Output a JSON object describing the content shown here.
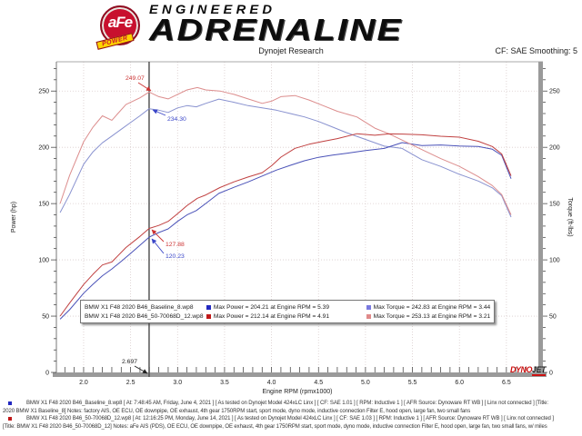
{
  "header": {
    "logo_circle": "aFe",
    "logo_ribbon": "POWER",
    "logo_line1": "ENGINEERED",
    "logo_line2": "ADRENALINE",
    "subtitle": "Dynojet Research",
    "cf_label": "CF: SAE  Smoothing: 5"
  },
  "chart_data": {
    "type": "line",
    "xlabel": "Engine RPM (rpmx1000)",
    "ylabel_left": "Power (hp)",
    "ylabel_right": "Torque (ft-lbs)",
    "xlim": [
      1.71,
      6.84
    ],
    "ylim": [
      0,
      276
    ],
    "x_ticks": [
      2.0,
      2.5,
      3.0,
      3.5,
      4.0,
      4.5,
      5.0,
      5.5,
      6.0,
      6.5
    ],
    "x_minor_step": 0.1,
    "y_ticks": [
      0,
      50,
      100,
      150,
      200,
      250
    ],
    "y_minor_step": 10,
    "grid": "dotted",
    "cursor_rpm": 2.697,
    "series": [
      {
        "name": "baseline-torque",
        "color": "#8891cf",
        "x": [
          1.75,
          1.85,
          2.0,
          2.1,
          2.2,
          2.3,
          2.4,
          2.5,
          2.6,
          2.697,
          2.8,
          2.9,
          3.0,
          3.1,
          3.2,
          3.3,
          3.44,
          3.6,
          3.75,
          3.9,
          4.05,
          4.2,
          4.35,
          4.5,
          4.65,
          4.8,
          5.0,
          5.2,
          5.39,
          5.6,
          5.8,
          6.0,
          6.2,
          6.35,
          6.45,
          6.55
        ],
        "y": [
          142,
          158,
          185,
          196,
          204,
          210,
          216,
          222,
          228,
          234.3,
          233,
          231,
          235,
          237,
          236,
          239,
          242.8,
          240,
          237,
          235,
          233,
          230,
          227,
          223,
          218,
          213,
          207,
          201,
          199,
          189,
          183,
          176,
          170,
          164,
          157,
          138
        ]
      },
      {
        "name": "baseline-power",
        "color": "#4a52b8",
        "x": [
          1.75,
          1.85,
          2.0,
          2.1,
          2.2,
          2.3,
          2.4,
          2.5,
          2.6,
          2.697,
          2.8,
          2.9,
          3.0,
          3.1,
          3.2,
          3.3,
          3.44,
          3.6,
          3.75,
          3.9,
          4.05,
          4.2,
          4.35,
          4.5,
          4.65,
          4.8,
          5.0,
          5.2,
          5.39,
          5.6,
          5.8,
          6.0,
          6.2,
          6.35,
          6.45,
          6.55
        ],
        "y": [
          47.3,
          55.7,
          70.4,
          78.4,
          85.9,
          91.9,
          98.7,
          105.7,
          113,
          120.2,
          124.3,
          127.5,
          134.2,
          139.9,
          143.8,
          150.1,
          159.1,
          164.5,
          169.2,
          174.5,
          179.7,
          184,
          188,
          191.1,
          193,
          194.7,
          197.1,
          199,
          204.2,
          201.5,
          202.1,
          201.1,
          200.7,
          198.3,
          192.9,
          172.1
        ]
      },
      {
        "name": "afe-torque",
        "color": "#dc8d8d",
        "x": [
          1.75,
          1.85,
          2.0,
          2.1,
          2.2,
          2.3,
          2.45,
          2.6,
          2.697,
          2.8,
          2.9,
          3.0,
          3.1,
          3.21,
          3.3,
          3.45,
          3.6,
          3.75,
          3.9,
          4.0,
          4.1,
          4.25,
          4.4,
          4.55,
          4.7,
          4.91,
          5.1,
          5.25,
          5.4,
          5.6,
          5.8,
          6.0,
          6.2,
          6.35,
          6.45,
          6.55
        ],
        "y": [
          150,
          175,
          205,
          218,
          228,
          224,
          238,
          244,
          249.1,
          245,
          243,
          247,
          251,
          253.1,
          251,
          250,
          247,
          243,
          239,
          241,
          245,
          246,
          242,
          237,
          232,
          226.9,
          217,
          212,
          206,
          198,
          190,
          183,
          174,
          166,
          158,
          140
        ]
      },
      {
        "name": "afe-power",
        "color": "#c04040",
        "x": [
          1.75,
          1.85,
          2.0,
          2.1,
          2.2,
          2.3,
          2.45,
          2.6,
          2.697,
          2.8,
          2.9,
          3.0,
          3.1,
          3.21,
          3.3,
          3.45,
          3.6,
          3.75,
          3.9,
          4.0,
          4.1,
          4.25,
          4.4,
          4.55,
          4.7,
          4.91,
          5.1,
          5.25,
          5.4,
          5.6,
          5.8,
          6.0,
          6.2,
          6.35,
          6.45,
          6.55
        ],
        "y": [
          50,
          61.6,
          78.1,
          87.2,
          95.5,
          98.1,
          111,
          120.8,
          127.9,
          130.6,
          134.2,
          141.1,
          148.2,
          154.7,
          157.7,
          164.2,
          169.3,
          173.6,
          177.5,
          183.6,
          191.3,
          199.1,
          202.7,
          205.3,
          207.7,
          212.1,
          210.7,
          211.9,
          211.8,
          211.1,
          209.8,
          209,
          205.4,
          200.7,
          194.1,
          174.6
        ]
      }
    ],
    "callouts": [
      {
        "text": "249.07",
        "color": "#cc3333",
        "label": [
          138,
          88
        ],
        "from": [
          152,
          91
        ],
        "to": [
          166,
          100
        ]
      },
      {
        "text": "234.30",
        "color": "#3a46c8",
        "label": [
          184,
          133
        ],
        "from": [
          182,
          127
        ],
        "to": [
          168,
          121
        ]
      },
      {
        "text": "127.88",
        "color": "#cc3333",
        "label": [
          182,
          271
        ],
        "from": [
          180,
          266
        ],
        "to": [
          167,
          253
        ]
      },
      {
        "text": "120.23",
        "color": "#3a46c8",
        "label": [
          182,
          284
        ],
        "from": [
          180,
          279
        ],
        "to": [
          167,
          263
        ]
      },
      {
        "text": "2.697",
        "color": "#222222",
        "label": [
          134,
          400
        ],
        "from": [
          148,
          403
        ],
        "to": [
          162,
          411
        ]
      }
    ]
  },
  "legend": {
    "rows": [
      {
        "file": "BMW X1 F48 2020 B46_Baseline_8.wp8",
        "power_color": "#2228c0",
        "power_text": "Max Power = 204.21 at Engine RPM = 5.39",
        "torque_color": "#7a7ae0",
        "torque_text": "Max Torque = 242.83 at Engine RPM = 3.44"
      },
      {
        "file": "BMW X1 F48 2020 B46_50-70068D_12.wp8",
        "power_color": "#c01818",
        "power_text": "Max Power = 212.14 at Engine RPM = 4.91",
        "torque_color": "#e08a8a",
        "torque_text": "Max Torque = 253.13 at Engine RPM = 3.21"
      }
    ]
  },
  "watermark": {
    "dyno": "DYNO",
    "jet": "JET"
  },
  "footer": {
    "lines": [
      {
        "bullet": "#2228c0",
        "text": "BMW X1 F48 2020 B46_Baseline_8.wp8 [ At: 7:48:45 AM, Friday, June 4, 2021 ]  [ As tested on Dynojet Model 424xLC Linx ]  [ CF: SAE 1.01 ]  [ RPM: Inductive 1 ]  [ AFR Source: Dynoware RT WB ]  [ Linx not connected ]  [Title:"
      },
      {
        "bullet": "",
        "text": "2020 BMW X1 Baseline_8]  Notes: factory AIS, OE ECU, OE downpipe, OE exhaust, 4th gear 1750RPM start, sport mode, dyno mode, inductive connection Filter E, hood open, large fan, two small fans"
      },
      {
        "bullet": "#c01818",
        "text": "BMW X1 F48 2020 B46_50-70068D_12.wp8 [ At: 12:16:25 PM, Monday, June 14, 2021 ]  [ As tested on Dynojet Model 424xLC Linx ]  [ CF: SAE 1.03 ]  [ RPM: Inductive 1 ]  [ AFR Source: Dynoware RT WB ]  [ Linx not connected ]"
      },
      {
        "bullet": "",
        "text": "[Title: BMW X1 F48 2020 B46_50-70068D_12]  Notes: aFe AIS (PDS), OE ECU, OE downpipe, OE exhaust, 4th gear 1750RPM start, sport mode, dyno mode, inductive connection Filter E, hood open, large fan, two small fans, w/ miles"
      }
    ]
  }
}
